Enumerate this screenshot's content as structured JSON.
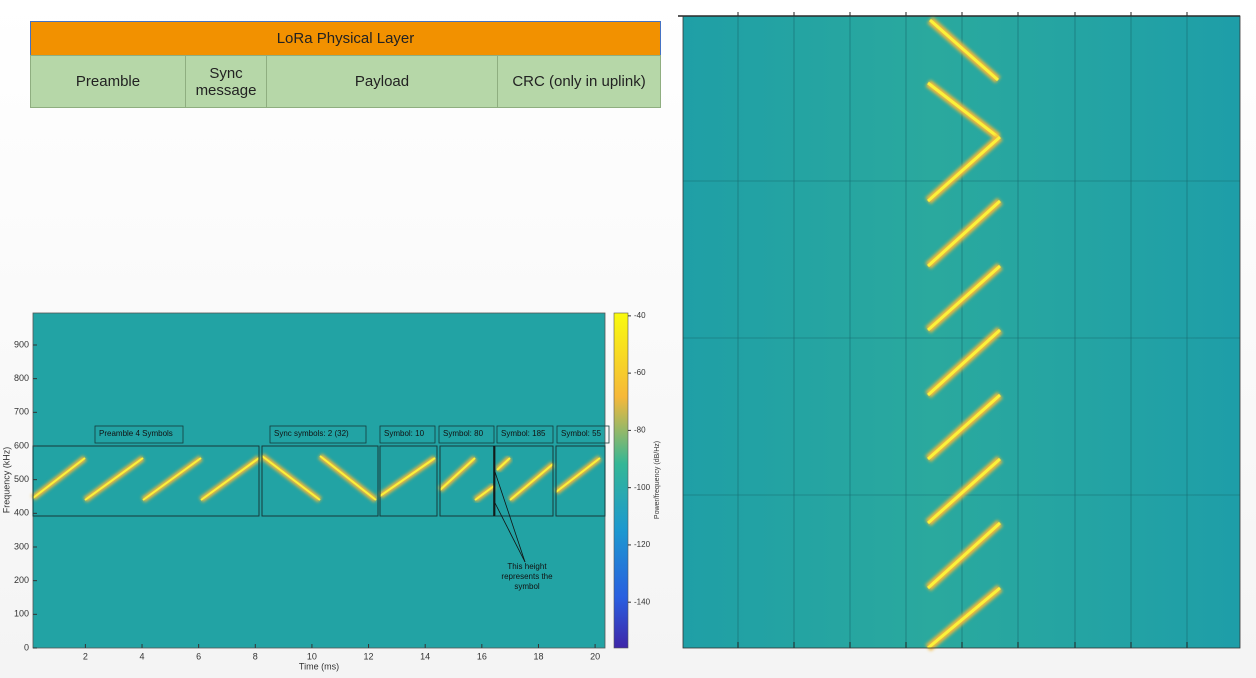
{
  "table": {
    "header": "LoRa Physical Layer",
    "cells": [
      "Preamble",
      "Sync message",
      "Payload",
      "CRC (only in uplink)"
    ]
  },
  "chart_data": {
    "type": "spectrogram",
    "xlabel": "Time (ms)",
    "ylabel": "Frequency (kHz)",
    "xlim": [
      0.15,
      20.35
    ],
    "ylim": [
      0,
      995
    ],
    "xticks": [
      2,
      4,
      6,
      8,
      10,
      12,
      14,
      16,
      18,
      20
    ],
    "yticks": [
      0,
      100,
      200,
      300,
      400,
      500,
      600,
      700,
      800,
      900
    ],
    "colorbar": {
      "label": "Power/frequency (dB/Hz)",
      "lim": [
        -39,
        -156
      ],
      "ticks": [
        -40,
        -60,
        -80,
        -100,
        -120,
        -140
      ]
    },
    "annotations": [
      "Preamble 4 Symbols",
      "Sync symbols: 2 (32)",
      "Symbol: 10",
      "Symbol: 80",
      "Symbol: 185",
      "Symbol: 55"
    ],
    "note": "This height represents the symbol"
  }
}
